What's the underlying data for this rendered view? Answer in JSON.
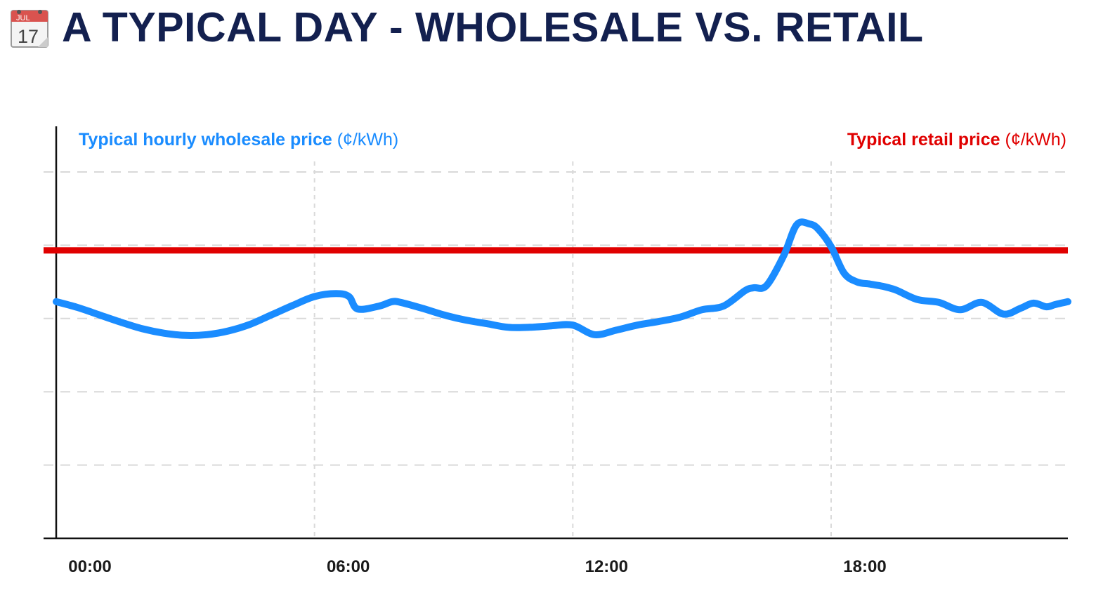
{
  "header": {
    "title": "A TYPICAL DAY - WHOLESALE VS. RETAIL",
    "icon": "calendar-icon",
    "icon_month": "JUL",
    "icon_day": "17"
  },
  "colors": {
    "title": "#13204f",
    "wholesale": "#1a8cff",
    "retail": "#e00000",
    "axis": "#111111",
    "grid": "#d9d9d9",
    "tick_text": "#1a1a1a"
  },
  "chart_data": {
    "type": "line",
    "xlabel": "",
    "ylabel": "",
    "x_ticks": [
      "00:00",
      "06:00",
      "12:00",
      "18:00"
    ],
    "xlim": [
      0,
      23.5
    ],
    "ylim": [
      0,
      5
    ],
    "grid": true,
    "legend": "top",
    "series": [
      {
        "name": "Typical hourly wholesale price",
        "unit": "(¢/kWh)",
        "color": "#1a8cff",
        "x": [
          0,
          0.5,
          1,
          1.5,
          2,
          2.5,
          3,
          3.5,
          4,
          4.5,
          5,
          5.5,
          6,
          6.5,
          6.8,
          7,
          7.5,
          7.8,
          8,
          8.5,
          9,
          9.5,
          10,
          10.5,
          11,
          11.5,
          12,
          12.5,
          13,
          13.5,
          14,
          14.5,
          15,
          15.5,
          16,
          16.2,
          16.5,
          16.9,
          17.2,
          17.5,
          17.7,
          18,
          18.3,
          18.6,
          18.9,
          19.2,
          19.5,
          20,
          20.5,
          21,
          21.5,
          22,
          22.4,
          22.7,
          23,
          23.2,
          23.5
        ],
        "values": [
          3.23,
          3.15,
          3.05,
          2.95,
          2.86,
          2.8,
          2.77,
          2.78,
          2.83,
          2.92,
          3.05,
          3.18,
          3.3,
          3.34,
          3.3,
          3.13,
          3.17,
          3.23,
          3.22,
          3.14,
          3.05,
          2.98,
          2.93,
          2.88,
          2.88,
          2.9,
          2.91,
          2.78,
          2.84,
          2.91,
          2.96,
          3.02,
          3.12,
          3.17,
          3.38,
          3.42,
          3.45,
          3.86,
          4.28,
          4.29,
          4.22,
          3.98,
          3.62,
          3.5,
          3.47,
          3.44,
          3.39,
          3.26,
          3.22,
          3.12,
          3.22,
          3.06,
          3.14,
          3.21,
          3.16,
          3.19,
          3.23
        ]
      },
      {
        "name": "Typical retail price",
        "unit": "(¢/kWh)",
        "color": "#e00000",
        "x": [
          0,
          23.5
        ],
        "values": [
          3.93,
          3.93
        ]
      }
    ]
  }
}
